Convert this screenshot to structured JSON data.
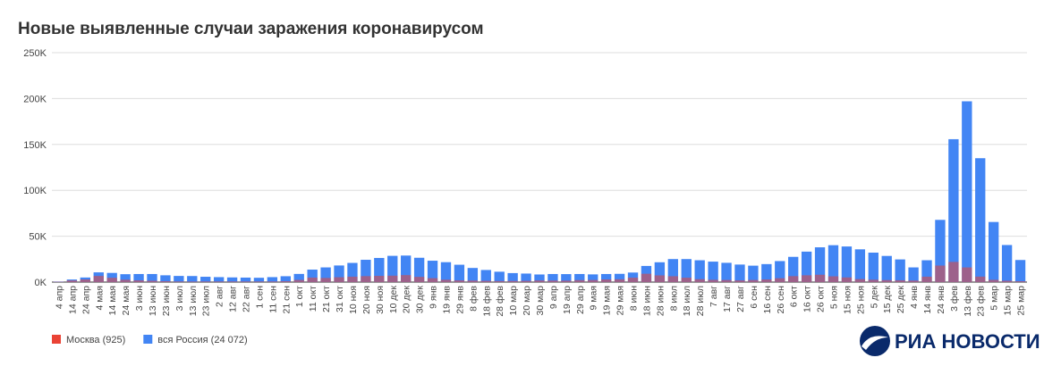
{
  "chart_data": {
    "type": "bar",
    "title": "Новые выявленные случаи заражения коронавирусом",
    "brand": "РИА НОВОСТИ",
    "categories": [
      "4 апр",
      "14 апр",
      "24 апр",
      "4 мая",
      "14 мая",
      "24 мая",
      "3 июн",
      "13 июн",
      "23 июн",
      "3 июл",
      "13 июл",
      "23 июл",
      "2 авг",
      "12 авг",
      "22 авг",
      "1 сен",
      "11 сен",
      "21 сен",
      "1 окт",
      "11 окт",
      "21 окт",
      "31 окт",
      "10 ноя",
      "20 ноя",
      "30 ноя",
      "10 дек",
      "20 дек",
      "30 дек",
      "9 янв",
      "19 янв",
      "29 янв",
      "8 фев",
      "18 фев",
      "28 фев",
      "10 мар",
      "20 мар",
      "30 мар",
      "9 апр",
      "19 апр",
      "29 апр",
      "9 мая",
      "19 мая",
      "29 мая",
      "8 июн",
      "18 июн",
      "28 июн",
      "8 июл",
      "18 июл",
      "28 июл",
      "7 авг",
      "17 авг",
      "27 авг",
      "6 сен",
      "16 сен",
      "26 сен",
      "6 окт",
      "16 окт",
      "26 окт",
      "5 ноя",
      "15 ноя",
      "25 ноя",
      "5 дек",
      "15 дек",
      "25 дек",
      "4 янв",
      "14 янв",
      "24 янв",
      "3 фев",
      "13 фев",
      "23 фев",
      "5 мар",
      "15 мар",
      "25 мар"
    ],
    "series": [
      {
        "name": "вся Россия (24 072)",
        "color": "#4285f4",
        "values": [
          600,
          2800,
          5000,
          10600,
          10000,
          8600,
          8800,
          8800,
          7400,
          6700,
          6600,
          5800,
          5400,
          5100,
          4900,
          4700,
          5400,
          6400,
          8900,
          13600,
          16000,
          18100,
          20900,
          24300,
          26300,
          28600,
          28900,
          26500,
          23300,
          21700,
          18900,
          15400,
          13200,
          11300,
          9800,
          9300,
          8300,
          8800,
          8700,
          8800,
          8400,
          8800,
          9000,
          10400,
          17600,
          21600,
          25100,
          25100,
          23800,
          22300,
          21000,
          19100,
          17900,
          19600,
          22900,
          27500,
          33200,
          37900,
          40200,
          38800,
          35700,
          32100,
          28500,
          24700,
          16000,
          23800,
          67800,
          155700,
          197000,
          135000,
          65500,
          40400,
          24072
        ]
      },
      {
        "name": "Москва (925)",
        "color": "#ea4335",
        "values": [
          400,
          1800,
          2900,
          6700,
          4700,
          2600,
          1900,
          1500,
          1000,
          700,
          600,
          700,
          700,
          700,
          700,
          700,
          700,
          1000,
          2400,
          4900,
          4500,
          5300,
          5900,
          6500,
          6800,
          7000,
          7600,
          5700,
          4300,
          2600,
          1900,
          1700,
          1400,
          1200,
          1300,
          1400,
          1800,
          1700,
          1600,
          2200,
          2300,
          2900,
          3100,
          4800,
          9100,
          7300,
          6400,
          4800,
          3200,
          2500,
          2300,
          1900,
          2300,
          2900,
          4200,
          6500,
          7400,
          8000,
          6300,
          5100,
          3300,
          2600,
          2200,
          2000,
          1700,
          5900,
          18000,
          22000,
          16000,
          6000,
          2500,
          1500,
          925
        ]
      }
    ],
    "ylim": [
      0,
      250000
    ],
    "yticks": [
      {
        "value": 0,
        "label": "0K"
      },
      {
        "value": 50000,
        "label": "50K"
      },
      {
        "value": 100000,
        "label": "100K"
      },
      {
        "value": 150000,
        "label": "150K"
      },
      {
        "value": 200000,
        "label": "200K"
      },
      {
        "value": 250000,
        "label": "250K"
      }
    ],
    "grid": true,
    "legend": "bottom-left"
  }
}
